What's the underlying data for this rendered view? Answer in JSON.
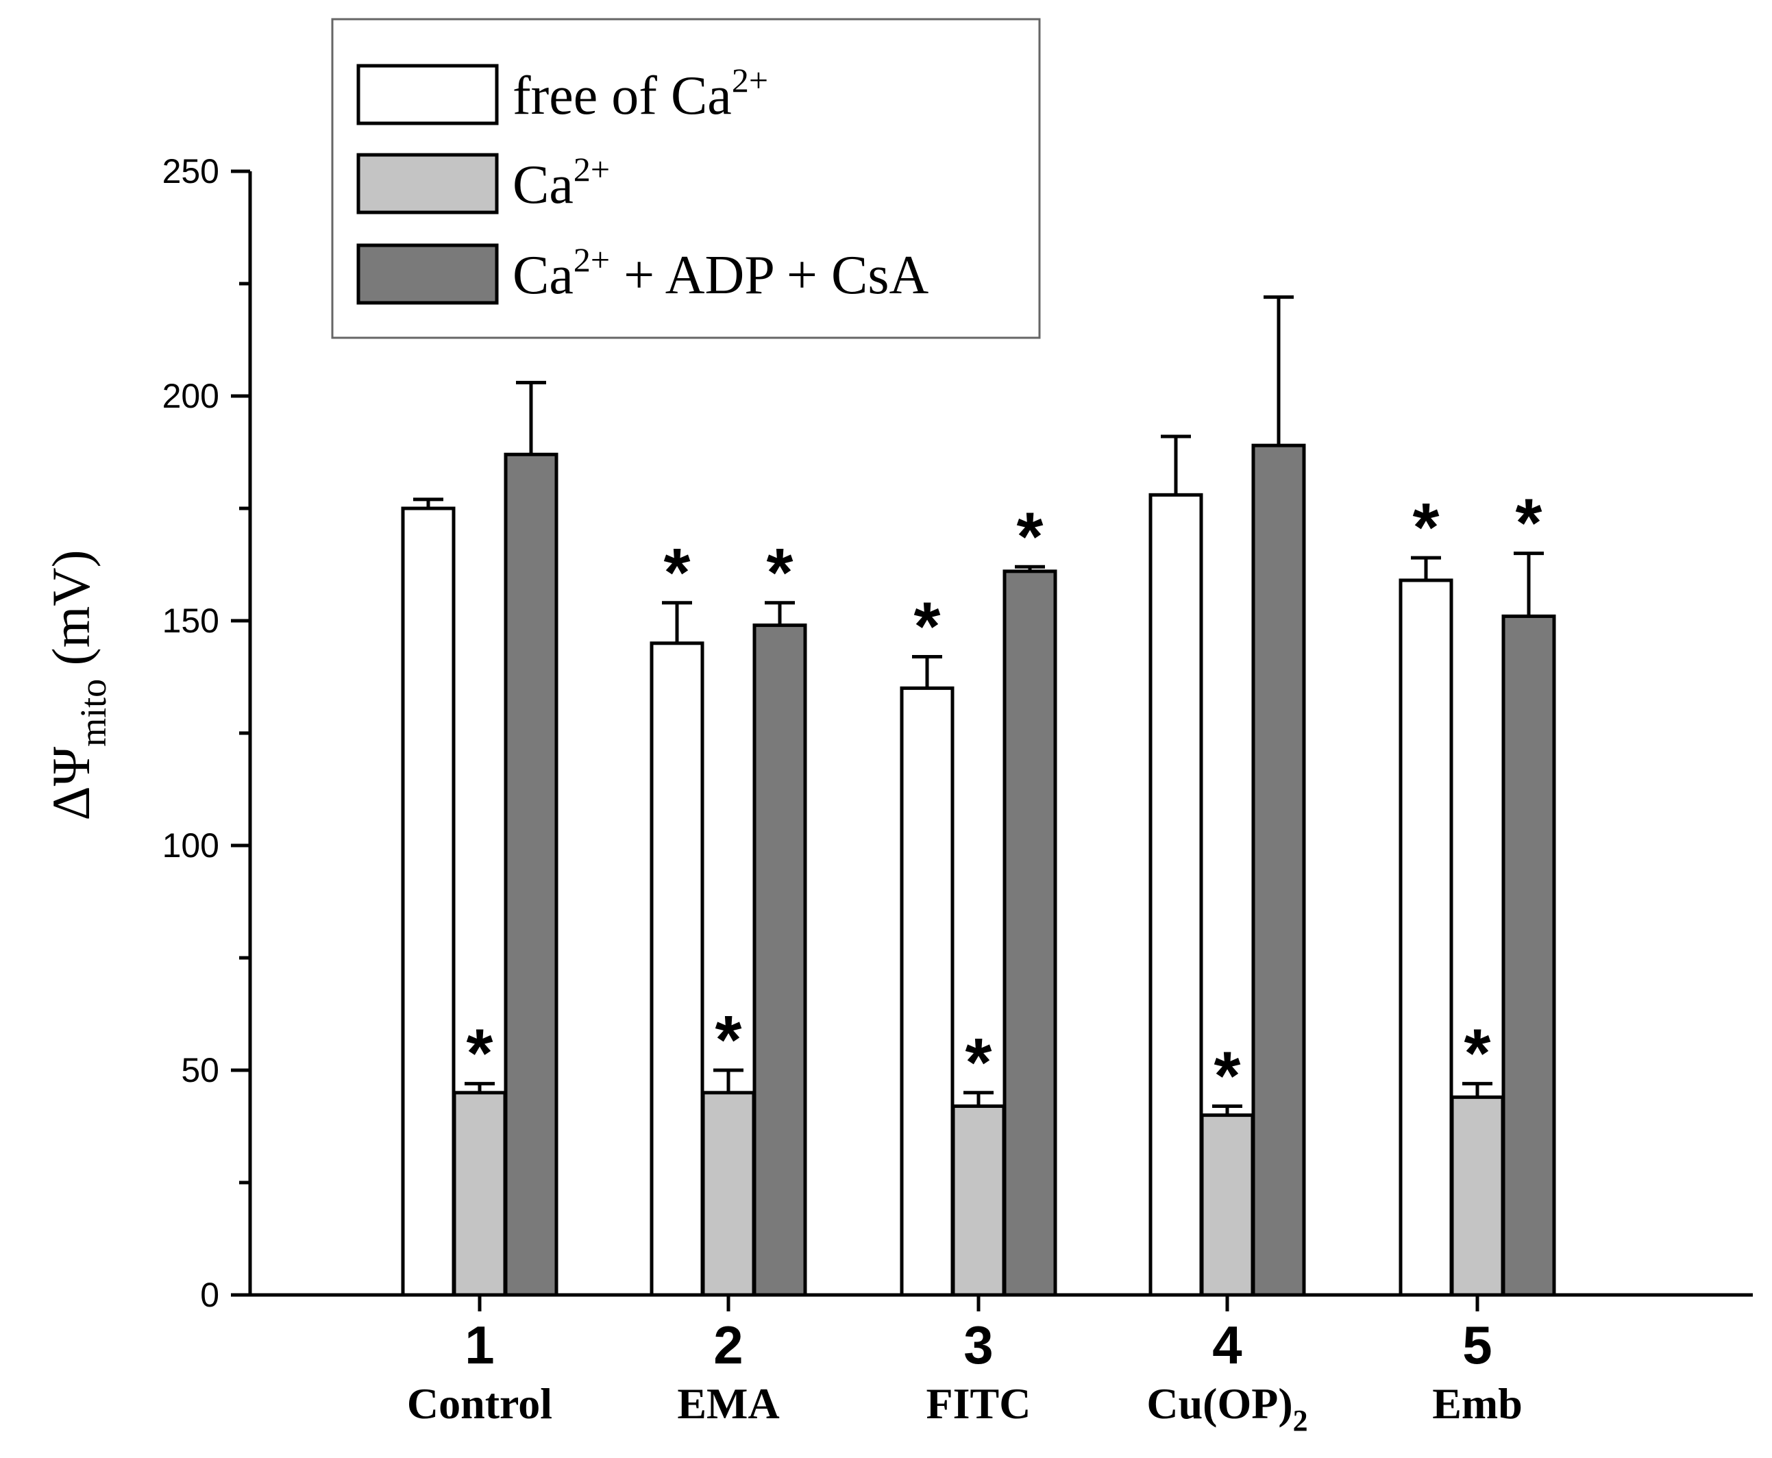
{
  "chart_data": {
    "type": "bar",
    "title": "",
    "ylabel": {
      "prefix": "ΔΨ",
      "subscript": "mito",
      "unit": "(mV)"
    },
    "xlabel": "",
    "ylim": [
      0,
      250
    ],
    "yticks": [
      "0",
      "50",
      "100",
      "150",
      "200",
      "250"
    ],
    "categories": [
      {
        "number": "1",
        "name": "Control",
        "subscript": ""
      },
      {
        "number": "2",
        "name": "EMA",
        "subscript": ""
      },
      {
        "number": "3",
        "name": "FITC",
        "subscript": ""
      },
      {
        "number": "4",
        "name": "Cu(OP)",
        "subscript": "2"
      },
      {
        "number": "5",
        "name": "Emb",
        "subscript": ""
      }
    ],
    "series": [
      {
        "name": "free of Ca2+",
        "legend_parts": {
          "base": "free of Ca",
          "sup": "2+",
          "after": ""
        },
        "color": "#ffffff",
        "values": [
          175,
          145,
          135,
          178,
          159
        ],
        "errors": [
          2,
          9,
          7,
          13,
          5
        ],
        "significant": [
          false,
          true,
          true,
          false,
          true
        ]
      },
      {
        "name": "Ca2+",
        "legend_parts": {
          "base": "Ca",
          "sup": "2+",
          "after": ""
        },
        "color": "#c4c4c4",
        "values": [
          45,
          45,
          42,
          40,
          44
        ],
        "errors": [
          2,
          5,
          3,
          2,
          3
        ],
        "significant": [
          true,
          true,
          true,
          true,
          true
        ]
      },
      {
        "name": "Ca2+ + ADP + CsA",
        "legend_parts": {
          "base": "Ca",
          "sup": "2+",
          "after": " + ADP + CsA"
        },
        "color": "#7a7a7a",
        "values": [
          187,
          149,
          161,
          189,
          151
        ],
        "errors": [
          16,
          5,
          1,
          33,
          14
        ],
        "significant": [
          false,
          true,
          true,
          false,
          true
        ]
      }
    ],
    "significance_marker": "*",
    "legend_position": "top-left",
    "grid": false
  }
}
